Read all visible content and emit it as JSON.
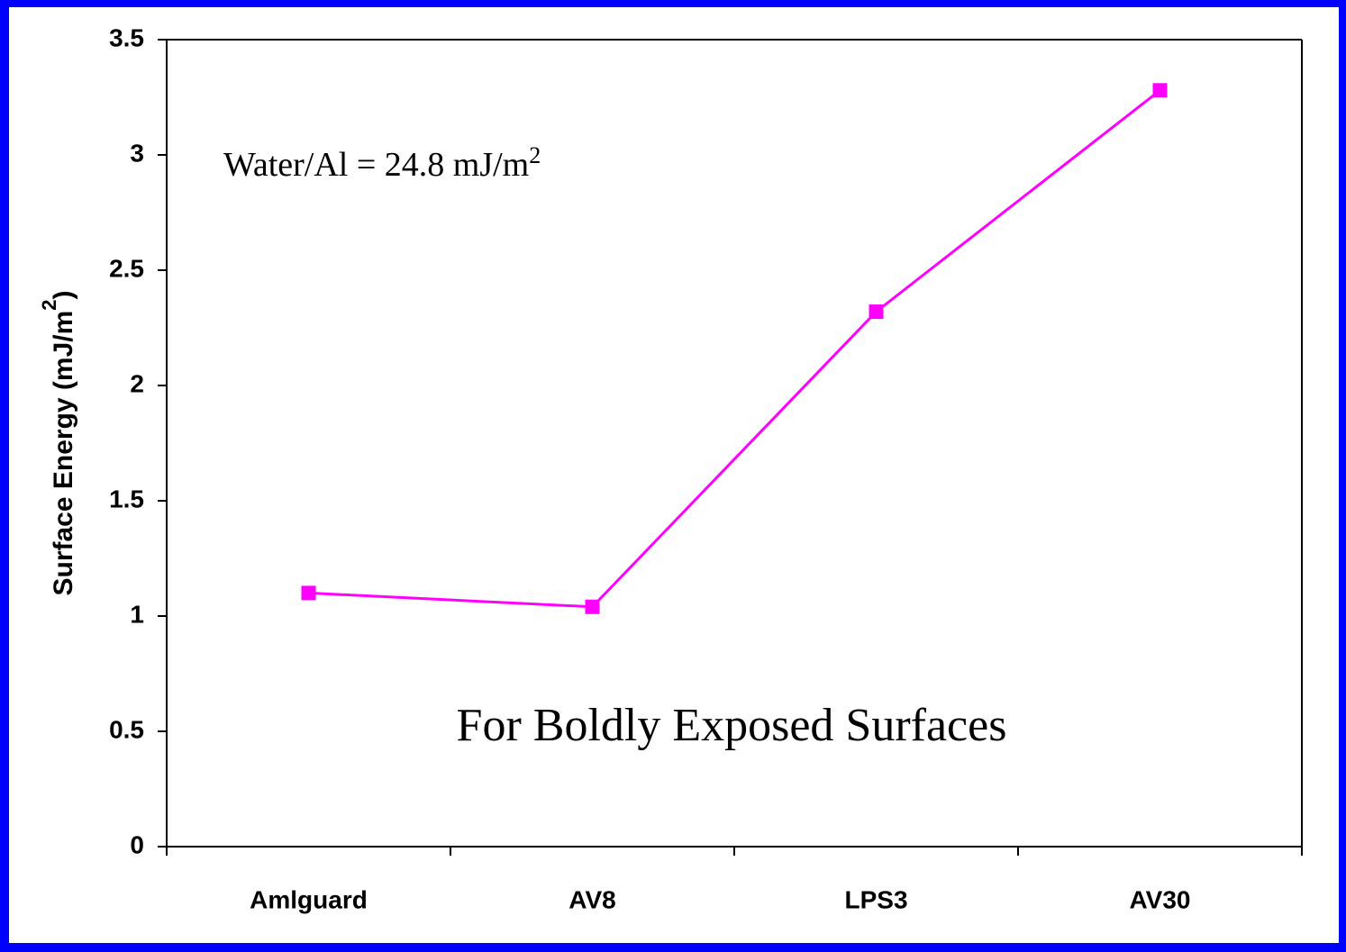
{
  "chart_data": {
    "type": "line",
    "y_label": {
      "text": "Surface Energy (mJ/m",
      "sup": "2",
      "end": ")"
    },
    "annotations": [
      {
        "text": "Water/Al = 24.8 mJ/m",
        "sup": "2"
      },
      {
        "text": "For Boldly Exposed Surfaces"
      }
    ],
    "categories": [
      "Amlguard",
      "AV8",
      "LPS3",
      "AV30"
    ],
    "series": [
      {
        "name": "Surface Energy",
        "color": "#ff00ff",
        "values": [
          1.1,
          1.04,
          2.32,
          3.28
        ]
      }
    ],
    "ylim": [
      0,
      3.5
    ],
    "yticks": [
      0,
      0.5,
      1,
      1.5,
      2,
      2.5,
      3,
      3.5
    ],
    "grid": false
  }
}
